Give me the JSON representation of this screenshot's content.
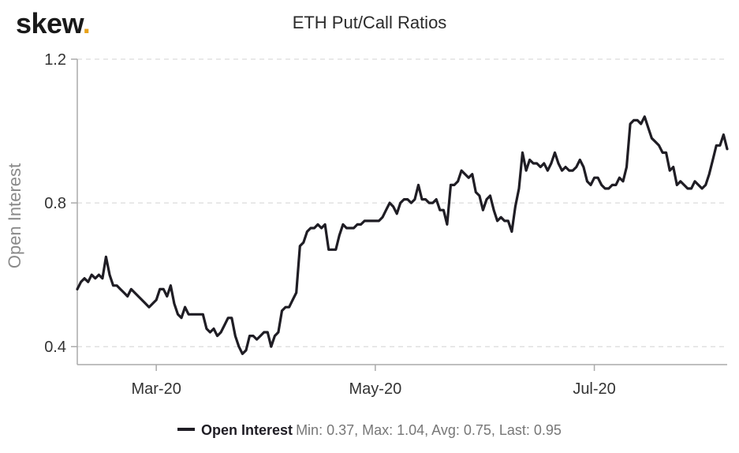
{
  "brand": {
    "name": "skew",
    "dot": "."
  },
  "chart_data": {
    "type": "line",
    "title": "ETH Put/Call Ratios",
    "ylabel": "Open Interest",
    "xlabel": "",
    "ylim": [
      0.35,
      1.2
    ],
    "y_ticks": [
      0.4,
      0.8,
      1.2
    ],
    "y_tick_labels": [
      "0.4",
      "0.8",
      "1.2"
    ],
    "x_ticks": [
      "2020-03-01",
      "2020-05-01",
      "2020-07-01"
    ],
    "x_tick_labels": [
      "Mar-20",
      "May-20",
      "Jul-20"
    ],
    "xlim": [
      "2020-02-08",
      "2020-08-07"
    ],
    "grid": true,
    "legend_position": "bottom-center",
    "series": [
      {
        "name": "Open Interest",
        "color": "#1f1d24",
        "stats_text": "Min: 0.37, Max: 1.04, Avg: 0.75, Last: 0.95",
        "points": [
          [
            "2020-02-08",
            0.56
          ],
          [
            "2020-02-09",
            0.58
          ],
          [
            "2020-02-10",
            0.59
          ],
          [
            "2020-02-11",
            0.58
          ],
          [
            "2020-02-12",
            0.6
          ],
          [
            "2020-02-13",
            0.59
          ],
          [
            "2020-02-14",
            0.6
          ],
          [
            "2020-02-15",
            0.59
          ],
          [
            "2020-02-16",
            0.65
          ],
          [
            "2020-02-17",
            0.6
          ],
          [
            "2020-02-18",
            0.57
          ],
          [
            "2020-02-19",
            0.57
          ],
          [
            "2020-02-20",
            0.56
          ],
          [
            "2020-02-21",
            0.55
          ],
          [
            "2020-02-22",
            0.54
          ],
          [
            "2020-02-23",
            0.56
          ],
          [
            "2020-02-24",
            0.55
          ],
          [
            "2020-02-25",
            0.54
          ],
          [
            "2020-02-26",
            0.53
          ],
          [
            "2020-02-27",
            0.52
          ],
          [
            "2020-02-28",
            0.51
          ],
          [
            "2020-02-29",
            0.52
          ],
          [
            "2020-03-01",
            0.53
          ],
          [
            "2020-03-02",
            0.56
          ],
          [
            "2020-03-03",
            0.56
          ],
          [
            "2020-03-04",
            0.54
          ],
          [
            "2020-03-05",
            0.57
          ],
          [
            "2020-03-06",
            0.52
          ],
          [
            "2020-03-07",
            0.49
          ],
          [
            "2020-03-08",
            0.48
          ],
          [
            "2020-03-09",
            0.51
          ],
          [
            "2020-03-10",
            0.49
          ],
          [
            "2020-03-11",
            0.49
          ],
          [
            "2020-03-12",
            0.49
          ],
          [
            "2020-03-13",
            0.49
          ],
          [
            "2020-03-14",
            0.49
          ],
          [
            "2020-03-15",
            0.45
          ],
          [
            "2020-03-16",
            0.44
          ],
          [
            "2020-03-17",
            0.45
          ],
          [
            "2020-03-18",
            0.43
          ],
          [
            "2020-03-19",
            0.44
          ],
          [
            "2020-03-20",
            0.46
          ],
          [
            "2020-03-21",
            0.48
          ],
          [
            "2020-03-22",
            0.48
          ],
          [
            "2020-03-23",
            0.43
          ],
          [
            "2020-03-24",
            0.4
          ],
          [
            "2020-03-25",
            0.38
          ],
          [
            "2020-03-26",
            0.39
          ],
          [
            "2020-03-27",
            0.43
          ],
          [
            "2020-03-28",
            0.43
          ],
          [
            "2020-03-29",
            0.42
          ],
          [
            "2020-03-30",
            0.43
          ],
          [
            "2020-03-31",
            0.44
          ],
          [
            "2020-04-01",
            0.44
          ],
          [
            "2020-04-02",
            0.4
          ],
          [
            "2020-04-03",
            0.43
          ],
          [
            "2020-04-04",
            0.44
          ],
          [
            "2020-04-05",
            0.5
          ],
          [
            "2020-04-06",
            0.51
          ],
          [
            "2020-04-07",
            0.51
          ],
          [
            "2020-04-08",
            0.53
          ],
          [
            "2020-04-09",
            0.55
          ],
          [
            "2020-04-10",
            0.68
          ],
          [
            "2020-04-11",
            0.69
          ],
          [
            "2020-04-12",
            0.72
          ],
          [
            "2020-04-13",
            0.73
          ],
          [
            "2020-04-14",
            0.73
          ],
          [
            "2020-04-15",
            0.74
          ],
          [
            "2020-04-16",
            0.73
          ],
          [
            "2020-04-17",
            0.74
          ],
          [
            "2020-04-18",
            0.67
          ],
          [
            "2020-04-19",
            0.67
          ],
          [
            "2020-04-20",
            0.67
          ],
          [
            "2020-04-21",
            0.71
          ],
          [
            "2020-04-22",
            0.74
          ],
          [
            "2020-04-23",
            0.73
          ],
          [
            "2020-04-24",
            0.73
          ],
          [
            "2020-04-25",
            0.73
          ],
          [
            "2020-04-26",
            0.74
          ],
          [
            "2020-04-27",
            0.74
          ],
          [
            "2020-04-28",
            0.75
          ],
          [
            "2020-04-29",
            0.75
          ],
          [
            "2020-04-30",
            0.75
          ],
          [
            "2020-05-01",
            0.75
          ],
          [
            "2020-05-02",
            0.75
          ],
          [
            "2020-05-03",
            0.76
          ],
          [
            "2020-05-04",
            0.78
          ],
          [
            "2020-05-05",
            0.8
          ],
          [
            "2020-05-06",
            0.79
          ],
          [
            "2020-05-07",
            0.77
          ],
          [
            "2020-05-08",
            0.8
          ],
          [
            "2020-05-09",
            0.81
          ],
          [
            "2020-05-10",
            0.81
          ],
          [
            "2020-05-11",
            0.8
          ],
          [
            "2020-05-12",
            0.81
          ],
          [
            "2020-05-13",
            0.85
          ],
          [
            "2020-05-14",
            0.81
          ],
          [
            "2020-05-15",
            0.81
          ],
          [
            "2020-05-16",
            0.8
          ],
          [
            "2020-05-17",
            0.8
          ],
          [
            "2020-05-18",
            0.81
          ],
          [
            "2020-05-19",
            0.78
          ],
          [
            "2020-05-20",
            0.78
          ],
          [
            "2020-05-21",
            0.74
          ],
          [
            "2020-05-22",
            0.85
          ],
          [
            "2020-05-23",
            0.85
          ],
          [
            "2020-05-24",
            0.86
          ],
          [
            "2020-05-25",
            0.89
          ],
          [
            "2020-05-26",
            0.88
          ],
          [
            "2020-05-27",
            0.87
          ],
          [
            "2020-05-28",
            0.88
          ],
          [
            "2020-05-29",
            0.83
          ],
          [
            "2020-05-30",
            0.82
          ],
          [
            "2020-05-31",
            0.78
          ],
          [
            "2020-06-01",
            0.81
          ],
          [
            "2020-06-02",
            0.82
          ],
          [
            "2020-06-03",
            0.78
          ],
          [
            "2020-06-04",
            0.75
          ],
          [
            "2020-06-05",
            0.76
          ],
          [
            "2020-06-06",
            0.75
          ],
          [
            "2020-06-07",
            0.75
          ],
          [
            "2020-06-08",
            0.72
          ],
          [
            "2020-06-09",
            0.79
          ],
          [
            "2020-06-10",
            0.84
          ],
          [
            "2020-06-11",
            0.94
          ],
          [
            "2020-06-12",
            0.89
          ],
          [
            "2020-06-13",
            0.92
          ],
          [
            "2020-06-14",
            0.91
          ],
          [
            "2020-06-15",
            0.91
          ],
          [
            "2020-06-16",
            0.9
          ],
          [
            "2020-06-17",
            0.91
          ],
          [
            "2020-06-18",
            0.89
          ],
          [
            "2020-06-19",
            0.91
          ],
          [
            "2020-06-20",
            0.94
          ],
          [
            "2020-06-21",
            0.91
          ],
          [
            "2020-06-22",
            0.89
          ],
          [
            "2020-06-23",
            0.9
          ],
          [
            "2020-06-24",
            0.89
          ],
          [
            "2020-06-25",
            0.89
          ],
          [
            "2020-06-26",
            0.9
          ],
          [
            "2020-06-27",
            0.92
          ],
          [
            "2020-06-28",
            0.9
          ],
          [
            "2020-06-29",
            0.86
          ],
          [
            "2020-06-30",
            0.85
          ],
          [
            "2020-07-01",
            0.87
          ],
          [
            "2020-07-02",
            0.87
          ],
          [
            "2020-07-03",
            0.85
          ],
          [
            "2020-07-04",
            0.84
          ],
          [
            "2020-07-05",
            0.84
          ],
          [
            "2020-07-06",
            0.85
          ],
          [
            "2020-07-07",
            0.85
          ],
          [
            "2020-07-08",
            0.87
          ],
          [
            "2020-07-09",
            0.86
          ],
          [
            "2020-07-10",
            0.9
          ],
          [
            "2020-07-11",
            1.02
          ],
          [
            "2020-07-12",
            1.03
          ],
          [
            "2020-07-13",
            1.03
          ],
          [
            "2020-07-14",
            1.02
          ],
          [
            "2020-07-15",
            1.04
          ],
          [
            "2020-07-16",
            1.01
          ],
          [
            "2020-07-17",
            0.98
          ],
          [
            "2020-07-18",
            0.97
          ],
          [
            "2020-07-19",
            0.96
          ],
          [
            "2020-07-20",
            0.94
          ],
          [
            "2020-07-21",
            0.94
          ],
          [
            "2020-07-22",
            0.89
          ],
          [
            "2020-07-23",
            0.9
          ],
          [
            "2020-07-24",
            0.85
          ],
          [
            "2020-07-25",
            0.86
          ],
          [
            "2020-07-26",
            0.85
          ],
          [
            "2020-07-27",
            0.84
          ],
          [
            "2020-07-28",
            0.84
          ],
          [
            "2020-07-29",
            0.86
          ],
          [
            "2020-07-30",
            0.85
          ],
          [
            "2020-07-31",
            0.84
          ],
          [
            "2020-08-01",
            0.85
          ],
          [
            "2020-08-02",
            0.88
          ],
          [
            "2020-08-03",
            0.92
          ],
          [
            "2020-08-04",
            0.96
          ],
          [
            "2020-08-05",
            0.96
          ],
          [
            "2020-08-06",
            0.99
          ],
          [
            "2020-08-07",
            0.95
          ]
        ]
      }
    ]
  }
}
